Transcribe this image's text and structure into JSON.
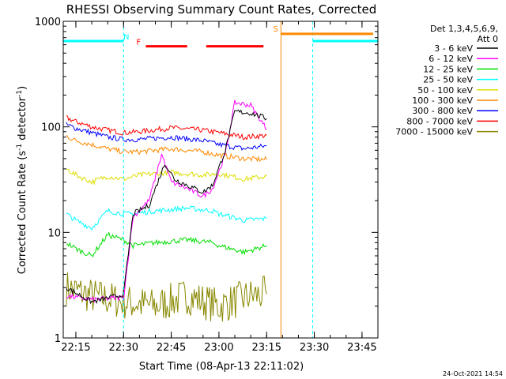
{
  "chart_data": {
    "type": "line",
    "title": "RHESSI Observing Summary Count Rates, Corrected",
    "xlabel": "Start Time (08-Apr-13 22:11:02)",
    "ylabel": "Corrected Count Rate (s⁻¹ detector⁻¹)",
    "ylabel_main": "Corrected Count Rate (s",
    "ylabel_sup1": "-1",
    "ylabel_mid": " detector",
    "ylabel_sup2": "-1",
    "ylabel_end": ")",
    "y_scale": "log",
    "ylim": [
      1,
      1000
    ],
    "xlim": [
      "22:11:02",
      "23:50:00"
    ],
    "x_ticks": [
      "22:15",
      "22:30",
      "22:45",
      "23:00",
      "23:15",
      "23:30",
      "23:45"
    ],
    "y_ticks": [
      "1",
      "10",
      "100",
      "1000"
    ],
    "legend_header": [
      "Det 1,3,4,5,6,9,",
      "Att 0"
    ],
    "legend_position": "right",
    "footer_date": "24-Oct-2021 14:54",
    "series": [
      {
        "name": "3 - 6 keV",
        "color": "#000000",
        "points": [
          [
            "22:12",
            3.0
          ],
          [
            "22:20",
            2.2
          ],
          [
            "22:28",
            2.5
          ],
          [
            "22:30",
            2.6
          ],
          [
            "22:33",
            15
          ],
          [
            "22:38",
            18
          ],
          [
            "22:43",
            45
          ],
          [
            "22:46",
            32
          ],
          [
            "22:50",
            28
          ],
          [
            "22:55",
            24
          ],
          [
            "22:58",
            28
          ],
          [
            "23:02",
            60
          ],
          [
            "23:05",
            140
          ],
          [
            "23:10",
            135
          ],
          [
            "23:15",
            120
          ]
        ]
      },
      {
        "name": "6 - 12 keV",
        "color": "#ff00ff",
        "points": [
          [
            "22:12",
            2.5
          ],
          [
            "22:20",
            2.3
          ],
          [
            "22:28",
            2.4
          ],
          [
            "22:30",
            2.4
          ],
          [
            "22:33",
            14
          ],
          [
            "22:38",
            20
          ],
          [
            "22:42",
            55
          ],
          [
            "22:45",
            30
          ],
          [
            "22:50",
            26
          ],
          [
            "22:55",
            22
          ],
          [
            "22:58",
            26
          ],
          [
            "23:02",
            55
          ],
          [
            "23:05",
            170
          ],
          [
            "23:10",
            160
          ],
          [
            "23:15",
            95
          ]
        ]
      },
      {
        "name": "12 - 25 keV",
        "color": "#00dd00",
        "points": [
          [
            "22:12",
            8
          ],
          [
            "22:15",
            7
          ],
          [
            "22:20",
            6
          ],
          [
            "22:25",
            9.5
          ],
          [
            "22:30",
            8.5
          ],
          [
            "22:33",
            7.5
          ],
          [
            "22:40",
            8
          ],
          [
            "22:50",
            8.5
          ],
          [
            "22:58",
            8
          ],
          [
            "23:00",
            7.5
          ],
          [
            "23:08",
            6.5
          ],
          [
            "23:15",
            7.5
          ]
        ]
      },
      {
        "name": "25 - 50 keV",
        "color": "#00ffff",
        "points": [
          [
            "22:12",
            15
          ],
          [
            "22:15",
            13
          ],
          [
            "22:20",
            11
          ],
          [
            "22:25",
            16
          ],
          [
            "22:30",
            15
          ],
          [
            "22:33",
            15
          ],
          [
            "22:40",
            16
          ],
          [
            "22:50",
            17
          ],
          [
            "22:58",
            16
          ],
          [
            "23:00",
            15
          ],
          [
            "23:08",
            13
          ],
          [
            "23:15",
            13.5
          ]
        ]
      },
      {
        "name": "50 - 100 keV",
        "color": "#dddd00",
        "points": [
          [
            "22:12",
            40
          ],
          [
            "22:15",
            35
          ],
          [
            "22:20",
            30
          ],
          [
            "22:25",
            34
          ],
          [
            "22:30",
            32
          ],
          [
            "22:35",
            35
          ],
          [
            "22:45",
            37
          ],
          [
            "22:55",
            35
          ],
          [
            "23:00",
            36
          ],
          [
            "23:08",
            32
          ],
          [
            "23:15",
            34
          ]
        ]
      },
      {
        "name": "100 - 300 keV",
        "color": "#ff8800",
        "points": [
          [
            "22:12",
            82
          ],
          [
            "22:15",
            74
          ],
          [
            "22:20",
            68
          ],
          [
            "22:25",
            62
          ],
          [
            "22:30",
            58
          ],
          [
            "22:35",
            58
          ],
          [
            "22:45",
            62
          ],
          [
            "22:55",
            58
          ],
          [
            "23:00",
            54
          ],
          [
            "23:08",
            50
          ],
          [
            "23:15",
            49
          ]
        ]
      },
      {
        "name": "300 - 800 keV",
        "color": "#0000ff",
        "points": [
          [
            "22:12",
            105
          ],
          [
            "22:15",
            97
          ],
          [
            "22:20",
            88
          ],
          [
            "22:25",
            80
          ],
          [
            "22:30",
            76
          ],
          [
            "22:35",
            76
          ],
          [
            "22:45",
            80
          ],
          [
            "22:55",
            74
          ],
          [
            "23:00",
            68
          ],
          [
            "23:08",
            62
          ],
          [
            "23:15",
            66
          ]
        ]
      },
      {
        "name": "800 - 7000 keV",
        "color": "#ff0000",
        "points": [
          [
            "22:12",
            122
          ],
          [
            "22:15",
            112
          ],
          [
            "22:20",
            100
          ],
          [
            "22:25",
            93
          ],
          [
            "22:30",
            88
          ],
          [
            "22:35",
            90
          ],
          [
            "22:45",
            98
          ],
          [
            "22:55",
            93
          ],
          [
            "23:00",
            88
          ],
          [
            "23:08",
            80
          ],
          [
            "23:15",
            83
          ]
        ]
      },
      {
        "name": "7000 - 15000 keV",
        "color": "#888800",
        "points": [
          [
            "22:12",
            3.0
          ],
          [
            "22:20",
            2.5
          ],
          [
            "22:30",
            2.2
          ],
          [
            "22:40",
            2.0
          ],
          [
            "22:50",
            2.5
          ],
          [
            "23:00",
            2.0
          ],
          [
            "23:10",
            2.5
          ],
          [
            "23:15",
            2.6
          ]
        ]
      }
    ],
    "annotations": [
      {
        "label": "N",
        "color": "#00ffff",
        "type": "night",
        "segments": [
          [
            "22:11:02",
            "22:30:00"
          ],
          [
            "23:29:30",
            "23:50:00"
          ]
        ],
        "level": 650,
        "markers": [
          "22:30:00",
          "23:29:30"
        ]
      },
      {
        "label": "F",
        "color": "#ff0000",
        "type": "flare",
        "segments": [
          [
            "22:37:00",
            "22:50:00"
          ],
          [
            "22:56:00",
            "23:14:00"
          ]
        ],
        "level": 580
      },
      {
        "label": "S",
        "color": "#ff8800",
        "type": "saa",
        "segments": [
          [
            "23:19:30",
            "23:48:30"
          ]
        ],
        "level": 760,
        "markers": [
          "23:19:30"
        ]
      }
    ]
  }
}
